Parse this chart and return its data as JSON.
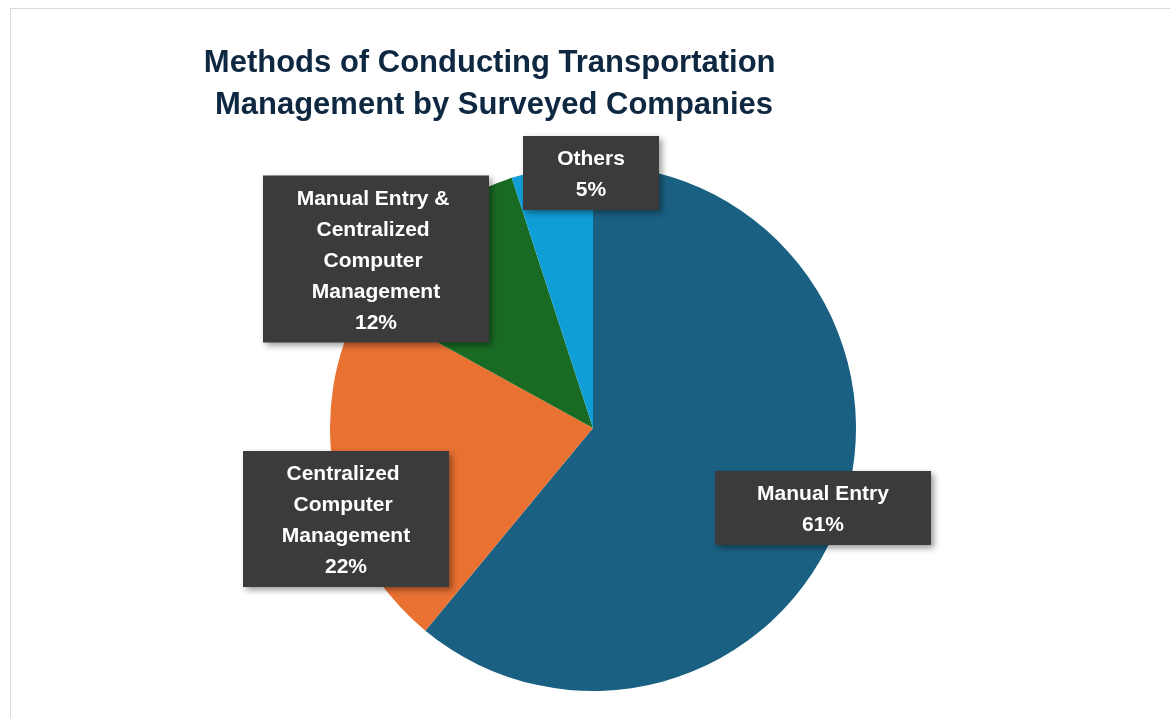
{
  "chart_data": {
    "type": "pie",
    "title": "Methods of Conducting Transportation Management by Surveyed Companies",
    "categories": [
      "Manual Entry",
      "Centralized Computer Management",
      "Manual Entry & Centralized Computer Management",
      "Others"
    ],
    "values": [
      61,
      22,
      12,
      5
    ],
    "colors": [
      "#1a6082",
      "#e97132",
      "#196b24",
      "#0f9ed5"
    ],
    "value_labels": [
      "61%",
      "22%",
      "12%",
      "5%"
    ],
    "legend": false
  }
}
